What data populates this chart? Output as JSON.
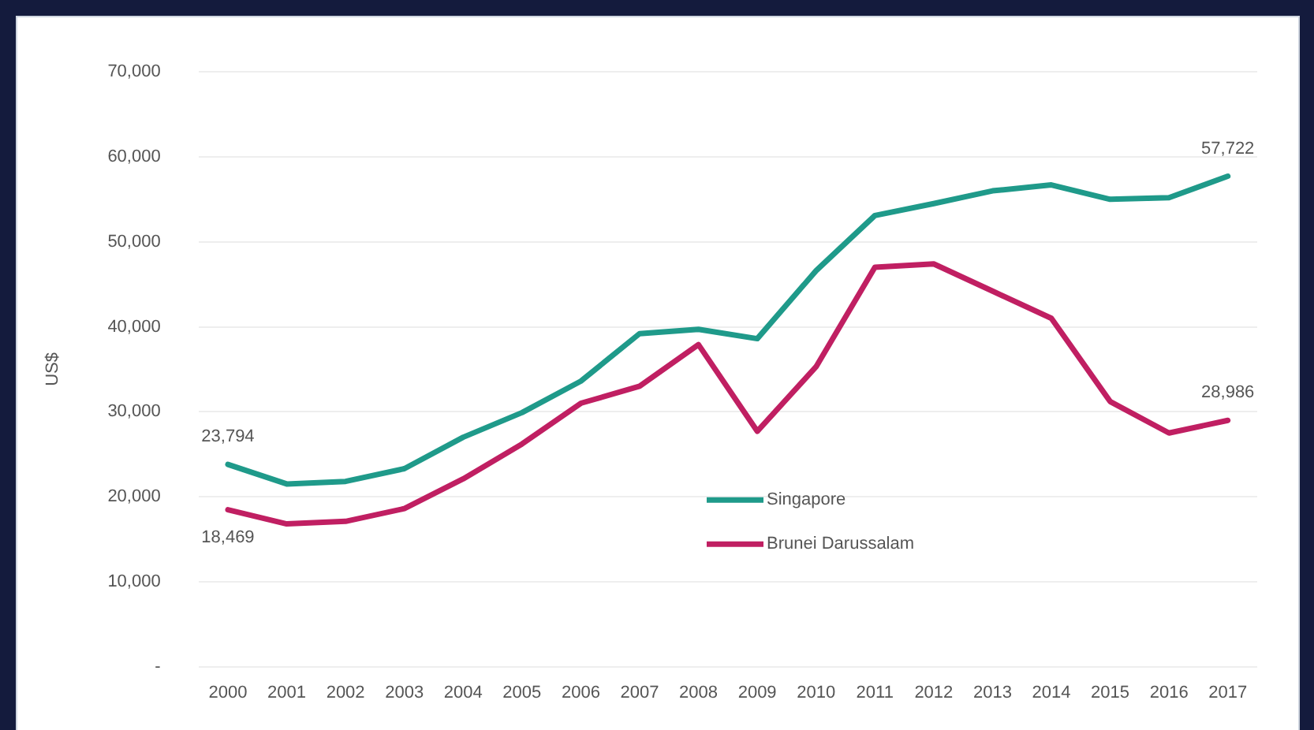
{
  "chart_data": {
    "type": "line",
    "ylabel": "US$",
    "categories": [
      "2000",
      "2001",
      "2002",
      "2003",
      "2004",
      "2005",
      "2006",
      "2007",
      "2008",
      "2009",
      "2010",
      "2011",
      "2012",
      "2013",
      "2014",
      "2015",
      "2016",
      "2017"
    ],
    "series": [
      {
        "name": "Singapore",
        "color": "#1f9a8a",
        "values": [
          23794,
          21500,
          21800,
          23300,
          27000,
          29900,
          33600,
          39200,
          39700,
          38600,
          46600,
          53100,
          54500,
          56000,
          56700,
          55000,
          55200,
          57722
        ],
        "value_labels": [
          "23,794",
          null,
          null,
          null,
          null,
          null,
          null,
          null,
          null,
          null,
          null,
          null,
          null,
          null,
          null,
          null,
          null,
          "57,722"
        ]
      },
      {
        "name": "Brunei Darussalam",
        "color": "#c01f62",
        "values": [
          18469,
          16800,
          17100,
          18600,
          22100,
          26200,
          31000,
          33000,
          37900,
          27700,
          35300,
          47000,
          47400,
          44200,
          41000,
          31200,
          27500,
          28986
        ],
        "value_labels": [
          "18,469",
          null,
          null,
          null,
          null,
          null,
          null,
          null,
          null,
          null,
          null,
          null,
          null,
          null,
          null,
          null,
          null,
          "28,986"
        ]
      }
    ],
    "ylim": [
      0,
      70000
    ],
    "yticks": [
      {
        "value": 0,
        "label": "-"
      },
      {
        "value": 10000,
        "label": "10,000"
      },
      {
        "value": 20000,
        "label": "20,000"
      },
      {
        "value": 30000,
        "label": "30,000"
      },
      {
        "value": 40000,
        "label": "40,000"
      },
      {
        "value": 50000,
        "label": "50,000"
      },
      {
        "value": 60000,
        "label": "60,000"
      },
      {
        "value": 70000,
        "label": "70,000"
      }
    ],
    "grid": "y",
    "legend": "bottom",
    "line_style": "solid",
    "marker": "none"
  }
}
